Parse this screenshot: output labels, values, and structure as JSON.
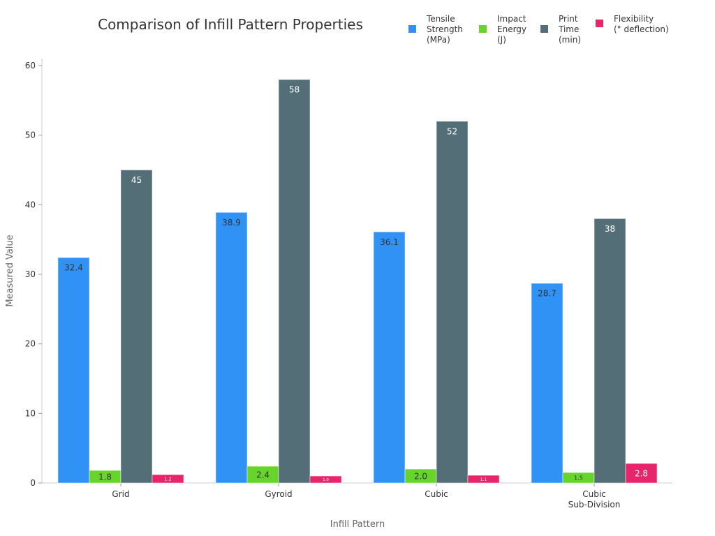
{
  "chart_data": {
    "type": "bar",
    "title": "Comparison of Infill Pattern Properties",
    "xlabel": "Infill Pattern",
    "ylabel": "Measured Value",
    "categories": [
      [
        "Grid"
      ],
      [
        "Gyroid"
      ],
      [
        "Cubic"
      ],
      [
        "Cubic",
        "Sub-Division"
      ]
    ],
    "ylim": [
      0,
      61
    ],
    "yticks": [
      0,
      10,
      20,
      30,
      40,
      50,
      60
    ],
    "grid": false,
    "legend_position": "top-right",
    "series": [
      {
        "name": [
          "Tensile",
          "Strength",
          "(MPa)"
        ],
        "color": "#3192f5",
        "values": [
          32.4,
          38.9,
          36.1,
          28.7
        ],
        "labels": [
          "32.4",
          "38.9",
          "36.1",
          "28.7"
        ]
      },
      {
        "name": [
          "Impact",
          "Energy",
          "(J)"
        ],
        "color": "#66d42a",
        "values": [
          1.8,
          2.4,
          2.0,
          1.5
        ],
        "labels": [
          "1.8",
          "2.4",
          "2.0",
          "1.5"
        ]
      },
      {
        "name": [
          "Print",
          "Time",
          "(min)"
        ],
        "color": "#546e78",
        "values": [
          45,
          58,
          52,
          38
        ],
        "labels": [
          "45",
          "58",
          "52",
          "38"
        ]
      },
      {
        "name": [
          "Flexibility",
          "(° deflection)"
        ],
        "color": "#e8246a",
        "values": [
          1.2,
          1.0,
          1.1,
          2.8
        ],
        "labels": [
          "1.2",
          "1.0",
          "1.1",
          "2.8"
        ]
      }
    ]
  }
}
